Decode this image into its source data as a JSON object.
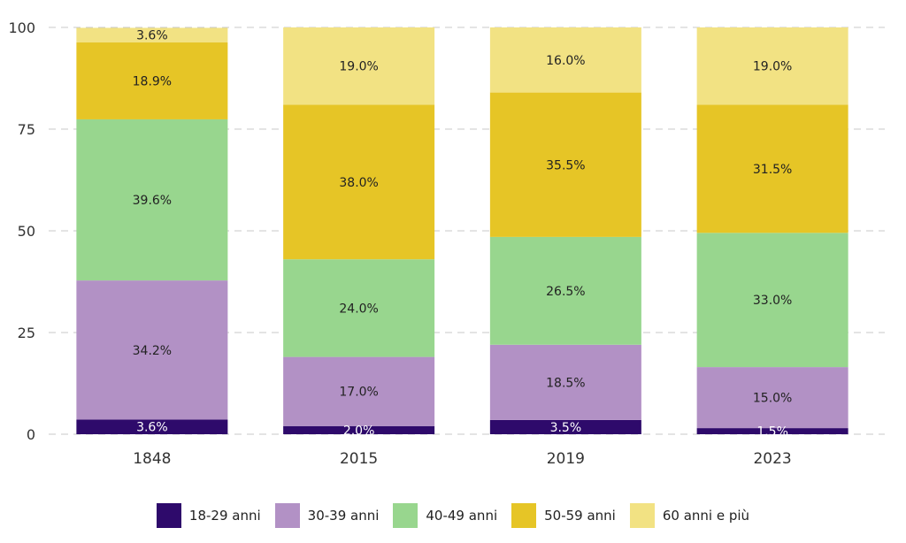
{
  "chart_data": {
    "type": "bar",
    "stacked": true,
    "categories": [
      "1848",
      "2015",
      "2019",
      "2023"
    ],
    "series": [
      {
        "name": "18-29 anni",
        "color": "#2e0a6b",
        "values": [
          3.6,
          2.0,
          3.5,
          1.5
        ],
        "labels": [
          "3.6%",
          "2.0%",
          "3.5%",
          "1.5%"
        ]
      },
      {
        "name": "30-39 anni",
        "color": "#b291c5",
        "values": [
          34.2,
          17.0,
          18.5,
          15.0
        ],
        "labels": [
          "34.2%",
          "17.0%",
          "18.5%",
          "15.0%"
        ]
      },
      {
        "name": "40-49 anni",
        "color": "#98d68e",
        "values": [
          39.6,
          24.0,
          26.5,
          33.0
        ],
        "labels": [
          "39.6%",
          "24.0%",
          "26.5%",
          "33.0%"
        ]
      },
      {
        "name": "50-59 anni",
        "color": "#e6c526",
        "values": [
          18.9,
          38.0,
          35.5,
          31.5
        ],
        "labels": [
          "18.9%",
          "38.0%",
          "35.5%",
          "31.5%"
        ]
      },
      {
        "name": "60 anni e più",
        "color": "#f2e283",
        "values": [
          3.6,
          19.0,
          16.0,
          19.0
        ],
        "labels": [
          "3.6%",
          "19.0%",
          "16.0%",
          "19.0%"
        ]
      }
    ],
    "yticks": [
      "0",
      "25",
      "50",
      "75",
      "100"
    ],
    "ylim": [
      0,
      100
    ],
    "grid": true,
    "legend_position": "bottom"
  }
}
